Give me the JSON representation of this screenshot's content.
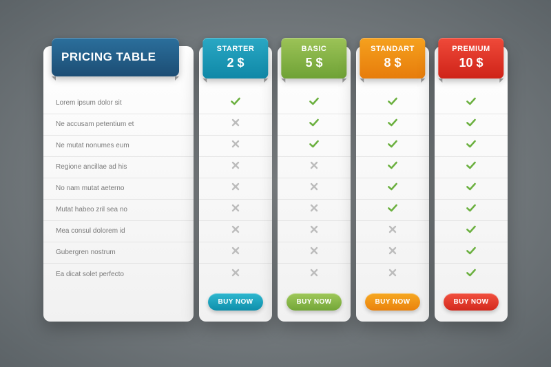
{
  "header_title": "PRICING TABLE",
  "header_ribbon_gradient": [
    "#2b6f9c",
    "#1c4d74"
  ],
  "features": [
    "Lorem ipsum dolor sit",
    "Ne accusam petentium et",
    "Ne mutat nonumes eum",
    "Regione ancillae ad his",
    "No nam mutat aeterno",
    "Mutat habeo zril sea no",
    "Mea consul dolorem id",
    "Gubergren nostrum",
    "Ea dicat solet perfecto"
  ],
  "buy_label": "BUY NOW",
  "plans": [
    {
      "name": "STARTER",
      "price": "2 $",
      "ribbon_gradient": [
        "#2aa8c4",
        "#0f88a7"
      ],
      "button_gradient": [
        "#2eb7cf",
        "#0f8fab"
      ],
      "values": [
        true,
        false,
        false,
        false,
        false,
        false,
        false,
        false,
        false
      ]
    },
    {
      "name": "BASIC",
      "price": "5 $",
      "ribbon_gradient": [
        "#9cc357",
        "#6fa236"
      ],
      "button_gradient": [
        "#9fc85a",
        "#73a638"
      ],
      "values": [
        true,
        true,
        true,
        false,
        false,
        false,
        false,
        false,
        false
      ]
    },
    {
      "name": "STANDART",
      "price": "8 $",
      "ribbon_gradient": [
        "#f5a11e",
        "#e77c0b"
      ],
      "button_gradient": [
        "#f6a822",
        "#ea820d"
      ],
      "values": [
        true,
        true,
        true,
        true,
        true,
        true,
        false,
        false,
        false
      ]
    },
    {
      "name": "PREMIUM",
      "price": "10 $",
      "ribbon_gradient": [
        "#ef4a3a",
        "#cf2318"
      ],
      "button_gradient": [
        "#f1503f",
        "#d3291d"
      ],
      "values": [
        true,
        true,
        true,
        true,
        true,
        true,
        true,
        true,
        true
      ]
    }
  ]
}
